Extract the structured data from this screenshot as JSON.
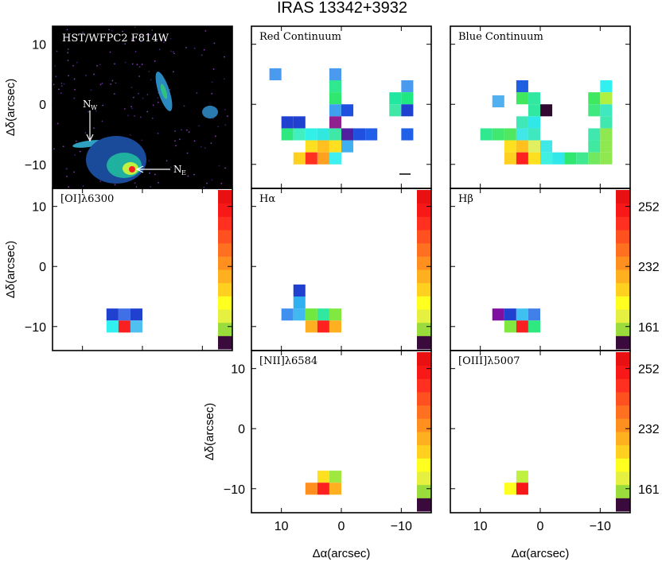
{
  "title": "IRAS 13342+3932",
  "colors": {
    "scale": [
      "#3a0a3c",
      "#9adc3c",
      "#e6f040",
      "#ffff20",
      "#ffd020",
      "#ffb020",
      "#ff9020",
      "#ff7020",
      "#ff5020",
      "#ff3020",
      "#f81818",
      "#e81010"
    ],
    "hst_bg": "#000000"
  },
  "axes": {
    "y_label": "Δδ(arcsec)",
    "x_label": "Δα(arcsec)",
    "y_ticks": [
      "10",
      "0",
      "−10"
    ],
    "x_ticks": [
      "10",
      "0",
      "−10"
    ]
  },
  "colorbar_ticks": [
    "252",
    "232",
    "161"
  ],
  "hst": {
    "label": "HST/WFPC2 F814W",
    "nucleus_w": "N",
    "nucleus_w_sub": "W",
    "nucleus_e": "N",
    "nucleus_e_sub": "E"
  },
  "chart_data": [
    {
      "type": "heatmap",
      "label": "Red Continuum",
      "xlim": [
        15,
        -15
      ],
      "ylim": [
        -14,
        13
      ],
      "cells": [
        {
          "x": 11,
          "y": 5,
          "c": "#4a9af0"
        },
        {
          "x": 1,
          "y": 5,
          "c": "#4a9af0"
        },
        {
          "x": 1,
          "y": 3,
          "c": "#30e890"
        },
        {
          "x": -11,
          "y": 3,
          "c": "#4a9af0"
        },
        {
          "x": 1,
          "y": 1,
          "c": "#30e870"
        },
        {
          "x": -9,
          "y": 1,
          "c": "#20e8a0"
        },
        {
          "x": -11,
          "y": 1,
          "c": "#20e880"
        },
        {
          "x": 1,
          "y": -1,
          "c": "#40a0f0"
        },
        {
          "x": -1,
          "y": -1,
          "c": "#2050e0"
        },
        {
          "x": -9,
          "y": -1,
          "c": "#40e8a8"
        },
        {
          "x": -11,
          "y": -1,
          "c": "#2040d0"
        },
        {
          "x": 9,
          "y": -3,
          "c": "#2040d0"
        },
        {
          "x": 7,
          "y": -3,
          "c": "#2040d0"
        },
        {
          "x": 1,
          "y": -3,
          "c": "#902090"
        },
        {
          "x": 9,
          "y": -5,
          "c": "#30e880"
        },
        {
          "x": 7,
          "y": -5,
          "c": "#40f0c0"
        },
        {
          "x": 5,
          "y": -5,
          "c": "#30f0e8"
        },
        {
          "x": 3,
          "y": -5,
          "c": "#30e8e0"
        },
        {
          "x": 1,
          "y": -5,
          "c": "#40e8a8"
        },
        {
          "x": -1,
          "y": -5,
          "c": "#5020a0"
        },
        {
          "x": -3,
          "y": -5,
          "c": "#2050e0"
        },
        {
          "x": -5,
          "y": -5,
          "c": "#2060e8"
        },
        {
          "x": -11,
          "y": -5,
          "c": "#2060e8"
        },
        {
          "x": 5,
          "y": -7,
          "c": "#ffe020"
        },
        {
          "x": 3,
          "y": -7,
          "c": "#ffc020"
        },
        {
          "x": 1,
          "y": -7,
          "c": "#ffe020"
        },
        {
          "x": -1,
          "y": -7,
          "c": "#40b0f0"
        },
        {
          "x": 7,
          "y": -9,
          "c": "#ffd020"
        },
        {
          "x": 5,
          "y": -9,
          "c": "#ff3020"
        },
        {
          "x": 3,
          "y": -9,
          "c": "#ffa020"
        },
        {
          "x": 1,
          "y": -9,
          "c": "#40f0f0"
        }
      ]
    },
    {
      "type": "heatmap",
      "label": "Blue Continuum",
      "xlim": [
        15,
        -15
      ],
      "ylim": [
        -14,
        13
      ],
      "cells": [
        {
          "x": 3,
          "y": 3,
          "c": "#2060e0"
        },
        {
          "x": -11,
          "y": 3,
          "c": "#30f0f0"
        },
        {
          "x": 3,
          "y": 1,
          "c": "#40e860"
        },
        {
          "x": 1,
          "y": 1,
          "c": "#30e8a0"
        },
        {
          "x": -9,
          "y": 1,
          "c": "#40e860"
        },
        {
          "x": -11,
          "y": 1,
          "c": "#b0f040"
        },
        {
          "x": 7,
          "y": 0.5,
          "c": "#50b0f0"
        },
        {
          "x": 1,
          "y": -1,
          "c": "#30e8a0"
        },
        {
          "x": -1,
          "y": -1,
          "c": "#300830"
        },
        {
          "x": -9,
          "y": -1,
          "c": "#40e880"
        },
        {
          "x": -11,
          "y": -1,
          "c": "#40e8c0"
        },
        {
          "x": 3,
          "y": -3,
          "c": "#40e8b8"
        },
        {
          "x": 1,
          "y": -3,
          "c": "#30e8e8"
        },
        {
          "x": -11,
          "y": -3,
          "c": "#40e8b0"
        },
        {
          "x": 9,
          "y": -5,
          "c": "#30e890"
        },
        {
          "x": 7,
          "y": -5,
          "c": "#40e870"
        },
        {
          "x": 5,
          "y": -5,
          "c": "#50e860"
        },
        {
          "x": 3,
          "y": -5,
          "c": "#40e8e8"
        },
        {
          "x": 1,
          "y": -5,
          "c": "#40e8c0"
        },
        {
          "x": -9,
          "y": -5,
          "c": "#40e8b0"
        },
        {
          "x": -11,
          "y": -5,
          "c": "#90e850"
        },
        {
          "x": 5,
          "y": -7,
          "c": "#ffe020"
        },
        {
          "x": 3,
          "y": -7,
          "c": "#ffc020"
        },
        {
          "x": 1,
          "y": -7,
          "c": "#e0f060"
        },
        {
          "x": -1,
          "y": -7,
          "c": "#40e8e8"
        },
        {
          "x": -9,
          "y": -7,
          "c": "#40e8a0"
        },
        {
          "x": -11,
          "y": -7,
          "c": "#90e850"
        },
        {
          "x": 5,
          "y": -9,
          "c": "#ffd020"
        },
        {
          "x": 3,
          "y": -9,
          "c": "#ff2020"
        },
        {
          "x": 1,
          "y": -9,
          "c": "#ffe020"
        },
        {
          "x": -1,
          "y": -9,
          "c": "#40f0e0"
        },
        {
          "x": -3,
          "y": -9,
          "c": "#30e8e8"
        },
        {
          "x": -5,
          "y": -9,
          "c": "#30e870"
        },
        {
          "x": -7,
          "y": -9,
          "c": "#40e890"
        },
        {
          "x": -9,
          "y": -9,
          "c": "#70e860"
        },
        {
          "x": -11,
          "y": -9,
          "c": "#90e850"
        }
      ]
    },
    {
      "type": "heatmap",
      "label": "[OI]λ6300",
      "xlim": [
        15,
        -15
      ],
      "ylim": [
        -14,
        13
      ],
      "cells": [
        {
          "x": 5,
          "y": -8,
          "c": "#2040d0"
        },
        {
          "x": 3,
          "y": -8,
          "c": "#4070e8"
        },
        {
          "x": 1,
          "y": -8,
          "c": "#2040d0"
        },
        {
          "x": 5,
          "y": -10,
          "c": "#30f0f0"
        },
        {
          "x": 3,
          "y": -10,
          "c": "#f82020"
        },
        {
          "x": 1,
          "y": -10,
          "c": "#50c0f0"
        }
      ]
    },
    {
      "type": "heatmap",
      "label": "Hα",
      "xlim": [
        15,
        -15
      ],
      "ylim": [
        -14,
        13
      ],
      "cells": [
        {
          "x": 7,
          "y": -4,
          "c": "#2040d0"
        },
        {
          "x": 7,
          "y": -6,
          "c": "#30b0f0"
        },
        {
          "x": 9,
          "y": -8,
          "c": "#4090f0"
        },
        {
          "x": 7,
          "y": -8,
          "c": "#40b8f0"
        },
        {
          "x": 5,
          "y": -8,
          "c": "#70e840"
        },
        {
          "x": 3,
          "y": -8,
          "c": "#30e8a0"
        },
        {
          "x": 1,
          "y": -8,
          "c": "#80e840"
        },
        {
          "x": 5,
          "y": -10,
          "c": "#ffb020"
        },
        {
          "x": 3,
          "y": -10,
          "c": "#ff2020"
        },
        {
          "x": 1,
          "y": -10,
          "c": "#ffb020"
        }
      ]
    },
    {
      "type": "heatmap",
      "label": "Hβ",
      "xlim": [
        15,
        -15
      ],
      "ylim": [
        -14,
        13
      ],
      "cells": [
        {
          "x": 7,
          "y": -8,
          "c": "#8010a0"
        },
        {
          "x": 5,
          "y": -8,
          "c": "#2040d0"
        },
        {
          "x": 3,
          "y": -8,
          "c": "#40c0f0"
        },
        {
          "x": 1,
          "y": -8,
          "c": "#4080e8"
        },
        {
          "x": 5,
          "y": -10,
          "c": "#80e840"
        },
        {
          "x": 3,
          "y": -10,
          "c": "#f82020"
        },
        {
          "x": 1,
          "y": -10,
          "c": "#30e880"
        }
      ]
    },
    {
      "type": "heatmap",
      "label": "[NII]λ6584",
      "xlim": [
        15,
        -15
      ],
      "ylim": [
        -14,
        13
      ],
      "cells": [
        {
          "x": 3,
          "y": -8,
          "c": "#ffe020"
        },
        {
          "x": 1,
          "y": -8,
          "c": "#a0e840"
        },
        {
          "x": 5,
          "y": -10,
          "c": "#ff9020"
        },
        {
          "x": 3,
          "y": -10,
          "c": "#ff2020"
        },
        {
          "x": 1,
          "y": -10,
          "c": "#ffb020"
        }
      ]
    },
    {
      "type": "heatmap",
      "label": "[OIII]λ5007",
      "xlim": [
        15,
        -15
      ],
      "ylim": [
        -14,
        13
      ],
      "cells": [
        {
          "x": 3,
          "y": -8,
          "c": "#c0f040"
        },
        {
          "x": 5,
          "y": -10,
          "c": "#ffff20"
        },
        {
          "x": 3,
          "y": -10,
          "c": "#f81818"
        }
      ]
    }
  ]
}
